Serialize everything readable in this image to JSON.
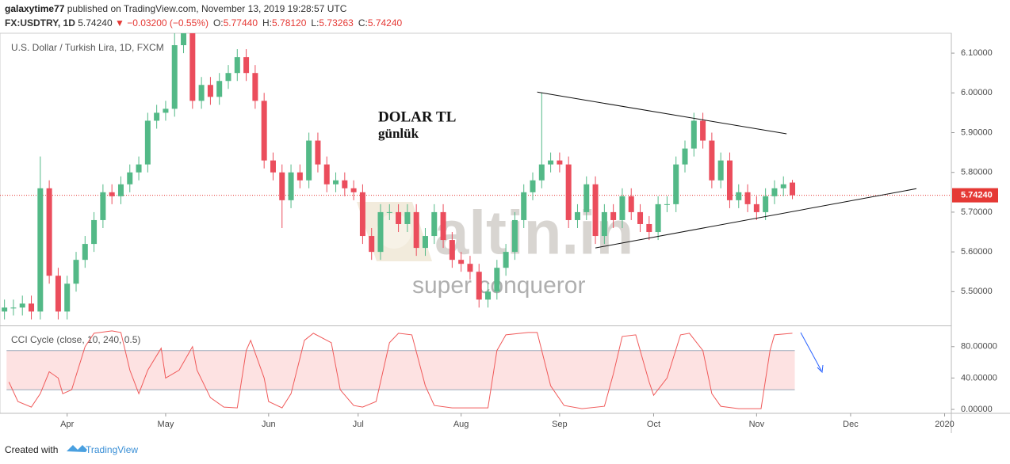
{
  "header": {
    "user": "galaxytime77",
    "published": "published on TradingView.com, November 13, 2019 19:28:57 UTC",
    "symbol": "FX:USDTRY, 1D",
    "last": "5.74240",
    "change": "▼ −0.03200 (−0.55%)",
    "ohlc": [
      [
        "O:",
        "5.77440"
      ],
      [
        "H:",
        "5.78120"
      ],
      [
        "L:",
        "5.73263"
      ],
      [
        "C:",
        "5.74240"
      ]
    ]
  },
  "footer": {
    "created": "Created with",
    "brand": "TradingView"
  },
  "chart_data": {
    "type": "candlestick",
    "title": "U.S. Dollar / Turkish Lira, 1D, FXCM",
    "annotation": [
      "DOLAR TL",
      "günlük"
    ],
    "watermark": [
      "altin.in",
      "super conqueror"
    ],
    "up_color": "#53b987",
    "down_color": "#eb4d5c",
    "xlim": [
      -15,
      197.5
    ],
    "xticks": [
      {
        "value": 0,
        "label": "Apr"
      },
      {
        "value": 22,
        "label": "May"
      },
      {
        "value": 45,
        "label": "Jun"
      },
      {
        "value": 65,
        "label": "Jul"
      },
      {
        "value": 88,
        "label": "Aug"
      },
      {
        "value": 110,
        "label": "Sep"
      },
      {
        "value": 131,
        "label": "Oct"
      },
      {
        "value": 154,
        "label": "Nov"
      },
      {
        "value": 175,
        "label": "Dec"
      },
      {
        "value": 196,
        "label": "2020"
      }
    ],
    "ylim": [
      5.415,
      6.15
    ],
    "yticks": [
      {
        "value": 5.5,
        "label": "5.50000"
      },
      {
        "value": 5.6,
        "label": "5.60000"
      },
      {
        "value": 5.7,
        "label": "5.70000"
      },
      {
        "value": 5.8,
        "label": "5.80000"
      },
      {
        "value": 5.9,
        "label": "5.90000"
      },
      {
        "value": 6.0,
        "label": "6.00000"
      },
      {
        "value": 6.1,
        "label": "6.10000"
      }
    ],
    "last_price": {
      "value": 5.7424,
      "label": "5.74240",
      "color": "#e53935"
    },
    "candles": {
      "x": [
        -14,
        -12,
        -10,
        -8,
        -6,
        -4,
        -2,
        0,
        2,
        4,
        6,
        8,
        10,
        12,
        14,
        16,
        18,
        20,
        22,
        24,
        26,
        28,
        30,
        32,
        34,
        36,
        38,
        40,
        42,
        44,
        46,
        48,
        50,
        52,
        54,
        56,
        58,
        60,
        62,
        64,
        66,
        68,
        70,
        72,
        74,
        76,
        78,
        80,
        82,
        84,
        86,
        88,
        90,
        92,
        94,
        96,
        98,
        100,
        102,
        104,
        106,
        108,
        110,
        112,
        114,
        116,
        118,
        120,
        122,
        124,
        126,
        128,
        130,
        132,
        134,
        136,
        138,
        140,
        142,
        144,
        146,
        148,
        150,
        152,
        154,
        156,
        158,
        160,
        162
      ],
      "ohlc": [
        [
          5.45,
          5.48,
          5.43,
          5.46
        ],
        [
          5.46,
          5.48,
          5.44,
          5.46
        ],
        [
          5.46,
          5.49,
          5.44,
          5.47
        ],
        [
          5.47,
          5.49,
          5.43,
          5.45
        ],
        [
          5.45,
          5.84,
          5.43,
          5.76
        ],
        [
          5.76,
          5.78,
          5.52,
          5.54
        ],
        [
          5.54,
          5.56,
          5.43,
          5.45
        ],
        [
          5.45,
          5.54,
          5.43,
          5.52
        ],
        [
          5.52,
          5.6,
          5.5,
          5.58
        ],
        [
          5.58,
          5.64,
          5.56,
          5.62
        ],
        [
          5.62,
          5.7,
          5.6,
          5.68
        ],
        [
          5.68,
          5.77,
          5.66,
          5.75
        ],
        [
          5.75,
          5.77,
          5.72,
          5.74
        ],
        [
          5.74,
          5.79,
          5.72,
          5.77
        ],
        [
          5.77,
          5.82,
          5.75,
          5.8
        ],
        [
          5.8,
          5.84,
          5.78,
          5.82
        ],
        [
          5.82,
          5.95,
          5.8,
          5.93
        ],
        [
          5.93,
          5.97,
          5.91,
          5.95
        ],
        [
          5.95,
          5.98,
          5.93,
          5.96
        ],
        [
          5.96,
          6.2,
          5.94,
          6.12
        ],
        [
          6.12,
          6.18,
          6.1,
          6.16
        ],
        [
          6.16,
          6.18,
          5.96,
          5.98
        ],
        [
          5.98,
          6.04,
          5.96,
          6.02
        ],
        [
          6.02,
          6.04,
          5.97,
          5.99
        ],
        [
          5.99,
          6.05,
          5.97,
          6.03
        ],
        [
          6.03,
          6.07,
          6.01,
          6.05
        ],
        [
          6.05,
          6.11,
          6.03,
          6.09
        ],
        [
          6.09,
          6.11,
          6.03,
          6.05
        ],
        [
          6.05,
          6.07,
          5.96,
          5.98
        ],
        [
          5.98,
          6.0,
          5.81,
          5.83
        ],
        [
          5.83,
          5.85,
          5.78,
          5.8
        ],
        [
          5.8,
          5.82,
          5.66,
          5.73
        ],
        [
          5.73,
          5.82,
          5.71,
          5.8
        ],
        [
          5.8,
          5.82,
          5.76,
          5.78
        ],
        [
          5.78,
          5.9,
          5.76,
          5.88
        ],
        [
          5.88,
          5.9,
          5.8,
          5.82
        ],
        [
          5.82,
          5.84,
          5.75,
          5.77
        ],
        [
          5.77,
          5.8,
          5.75,
          5.78
        ],
        [
          5.78,
          5.8,
          5.74,
          5.76
        ],
        [
          5.76,
          5.78,
          5.73,
          5.75
        ],
        [
          5.75,
          5.77,
          5.62,
          5.64
        ],
        [
          5.64,
          5.66,
          5.58,
          5.6
        ],
        [
          5.6,
          5.72,
          5.58,
          5.7
        ],
        [
          5.7,
          5.72,
          5.68,
          5.7
        ],
        [
          5.7,
          5.72,
          5.65,
          5.67
        ],
        [
          5.67,
          5.72,
          5.65,
          5.7
        ],
        [
          5.7,
          5.72,
          5.59,
          5.61
        ],
        [
          5.61,
          5.66,
          5.59,
          5.64
        ],
        [
          5.64,
          5.72,
          5.62,
          5.7
        ],
        [
          5.7,
          5.72,
          5.61,
          5.63
        ],
        [
          5.63,
          5.65,
          5.56,
          5.58
        ],
        [
          5.58,
          5.6,
          5.55,
          5.57
        ],
        [
          5.57,
          5.59,
          5.53,
          5.55
        ],
        [
          5.55,
          5.57,
          5.46,
          5.48
        ],
        [
          5.48,
          5.52,
          5.46,
          5.5
        ],
        [
          5.5,
          5.58,
          5.48,
          5.56
        ],
        [
          5.56,
          5.62,
          5.54,
          5.6
        ],
        [
          5.6,
          5.7,
          5.58,
          5.68
        ],
        [
          5.68,
          5.77,
          5.66,
          5.75
        ],
        [
          5.75,
          5.8,
          5.73,
          5.78
        ],
        [
          5.78,
          6.0,
          5.76,
          5.82
        ],
        [
          5.82,
          5.85,
          5.8,
          5.83
        ],
        [
          5.83,
          5.85,
          5.8,
          5.82
        ],
        [
          5.82,
          5.84,
          5.66,
          5.68
        ],
        [
          5.68,
          5.72,
          5.66,
          5.7
        ],
        [
          5.7,
          5.79,
          5.68,
          5.77
        ],
        [
          5.77,
          5.79,
          5.62,
          5.64
        ],
        [
          5.64,
          5.72,
          5.62,
          5.7
        ],
        [
          5.7,
          5.72,
          5.66,
          5.68
        ],
        [
          5.68,
          5.76,
          5.66,
          5.74
        ],
        [
          5.74,
          5.76,
          5.68,
          5.7
        ],
        [
          5.7,
          5.72,
          5.65,
          5.67
        ],
        [
          5.67,
          5.69,
          5.63,
          5.65
        ],
        [
          5.65,
          5.74,
          5.63,
          5.72
        ],
        [
          5.72,
          5.74,
          5.7,
          5.72
        ],
        [
          5.72,
          5.84,
          5.7,
          5.82
        ],
        [
          5.82,
          5.88,
          5.8,
          5.86
        ],
        [
          5.86,
          5.95,
          5.84,
          5.93
        ],
        [
          5.93,
          5.95,
          5.86,
          5.88
        ],
        [
          5.88,
          5.9,
          5.76,
          5.78
        ],
        [
          5.78,
          5.85,
          5.76,
          5.83
        ],
        [
          5.83,
          5.85,
          5.71,
          5.73
        ],
        [
          5.73,
          5.77,
          5.71,
          5.75
        ],
        [
          5.75,
          5.77,
          5.7,
          5.72
        ],
        [
          5.72,
          5.74,
          5.68,
          5.7
        ],
        [
          5.7,
          5.76,
          5.68,
          5.74
        ],
        [
          5.74,
          5.78,
          5.72,
          5.76
        ],
        [
          5.76,
          5.79,
          5.74,
          5.77
        ],
        [
          5.7744,
          5.7812,
          5.73263,
          5.7424
        ]
      ]
    },
    "trendlines": [
      {
        "x": [
          105,
          160.7
        ],
        "y": [
          6.002,
          5.897
        ]
      },
      {
        "x": [
          118,
          189.7
        ],
        "y": [
          5.61,
          5.759
        ]
      }
    ],
    "cci": {
      "title": "CCI Cycle (close, 10, 240, 0.5)",
      "color": "#f05a5a",
      "band": [
        25,
        75
      ],
      "band_color": "#fde2e2",
      "ylim": [
        -5,
        106
      ],
      "yticks": [
        {
          "value": 0,
          "label": "0.00000"
        },
        {
          "value": 40,
          "label": "40.00000"
        },
        {
          "value": 80,
          "label": "80.00000"
        }
      ],
      "x": [
        -13,
        -11,
        -8,
        -6,
        -4,
        -2,
        -1,
        1,
        4,
        6,
        10,
        12,
        14,
        16,
        18,
        21,
        22,
        25,
        28,
        29,
        32,
        35,
        38,
        40,
        41,
        44,
        45,
        48,
        50,
        53,
        55,
        59,
        61,
        64,
        66,
        69,
        72,
        74,
        77,
        80,
        82,
        86,
        89,
        94,
        96,
        98,
        103,
        105,
        108,
        111,
        115,
        120,
        122,
        124,
        127,
        130,
        131,
        134,
        137,
        139,
        142,
        144,
        146,
        150,
        155,
        157,
        158,
        162
      ],
      "values": [
        35,
        10,
        3,
        20,
        48,
        40,
        20,
        25,
        80,
        97,
        100,
        98,
        50,
        20,
        50,
        78,
        40,
        50,
        80,
        50,
        15,
        3,
        2,
        75,
        88,
        40,
        10,
        2,
        20,
        88,
        97,
        85,
        25,
        5,
        3,
        10,
        85,
        97,
        95,
        30,
        5,
        2,
        2,
        2,
        75,
        95,
        98,
        98,
        30,
        5,
        1,
        4,
        45,
        93,
        95,
        35,
        18,
        40,
        95,
        97,
        75,
        20,
        4,
        1,
        1,
        75,
        95,
        97
      ]
    }
  }
}
